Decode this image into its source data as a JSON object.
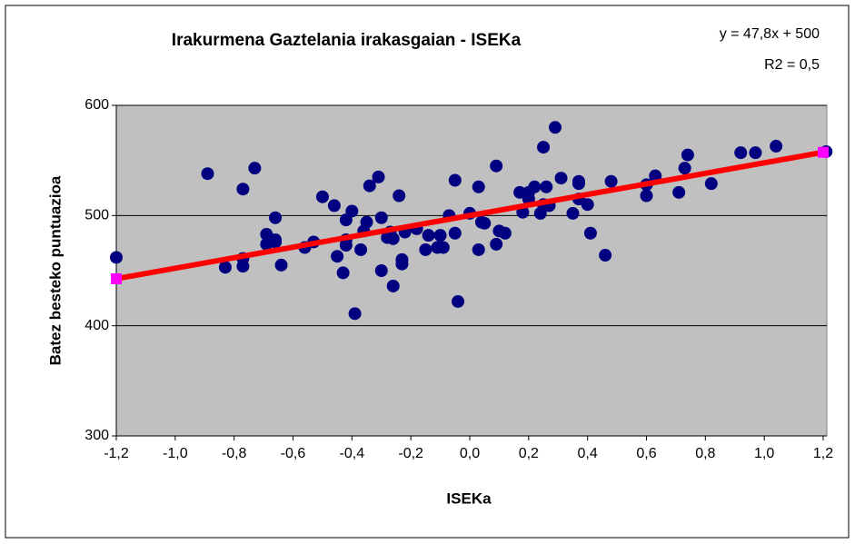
{
  "chart_data": {
    "type": "scatter",
    "title": "Irakurmena Gaztelania irakasgaian - ISEKa",
    "x_label": "ISEKa",
    "y_label": "Batez besteko puntuazioa",
    "annotations": [
      "y = 47,8x + 500",
      "R2 = 0,5"
    ],
    "plot_background": "#c0c0c0",
    "grid": true,
    "series": [
      {
        "color": "#000080",
        "x": [
          -1.2,
          -0.89,
          -0.83,
          -0.77,
          -0.77,
          -0.77,
          -0.73,
          -0.69,
          -0.69,
          -0.66,
          -0.66,
          -0.66,
          -0.64,
          -0.56,
          -0.53,
          -0.5,
          -0.46,
          -0.45,
          -0.43,
          -0.42,
          -0.42,
          -0.42,
          -0.4,
          -0.39,
          -0.37,
          -0.36,
          -0.35,
          -0.34,
          -0.31,
          -0.3,
          -0.3,
          -0.28,
          -0.27,
          -0.26,
          -0.26,
          -0.24,
          -0.23,
          -0.23,
          -0.22,
          -0.18,
          -0.15,
          -0.14,
          -0.11,
          -0.1,
          -0.09,
          -0.07,
          -0.05,
          -0.05,
          -0.04,
          0.0,
          0.03,
          0.03,
          0.04,
          0.05,
          0.09,
          0.09,
          0.1,
          0.12,
          0.17,
          0.18,
          0.2,
          0.2,
          0.22,
          0.24,
          0.25,
          0.25,
          0.26,
          0.27,
          0.29,
          0.31,
          0.35,
          0.37,
          0.37,
          0.37,
          0.4,
          0.41,
          0.46,
          0.48,
          0.6,
          0.6,
          0.63,
          0.71,
          0.73,
          0.74,
          0.82,
          0.92,
          0.97,
          1.04,
          1.21
        ],
        "values": [
          462,
          538,
          453,
          461,
          454,
          524,
          543,
          483,
          474,
          476,
          498,
          478,
          455,
          471,
          476,
          517,
          509,
          463,
          448,
          478,
          473,
          496,
          504,
          411,
          469,
          486,
          494,
          527,
          535,
          498,
          450,
          480,
          485,
          479,
          436,
          518,
          460,
          456,
          485,
          488,
          469,
          482,
          471,
          482,
          471,
          500,
          484,
          532,
          422,
          502,
          469,
          526,
          494,
          493,
          474,
          545,
          486,
          484,
          521,
          503,
          521,
          515,
          526,
          502,
          510,
          562,
          526,
          509,
          580,
          534,
          502,
          531,
          529,
          515,
          510,
          484,
          464,
          531,
          518,
          528,
          536,
          521,
          543,
          555,
          529,
          557,
          557,
          563,
          558
        ]
      }
    ],
    "trendline": {
      "color": "#ff0000",
      "endpoint_color": "#ff00ff",
      "x": [
        -1.2,
        1.2
      ],
      "y": [
        442.6,
        557.4
      ]
    },
    "xlim": [
      -1.2,
      1.2
    ],
    "xticks": [
      {
        "value": -1.2,
        "label": "-1,2"
      },
      {
        "value": -1.0,
        "label": "-1,0"
      },
      {
        "value": -0.8,
        "label": "-0,8"
      },
      {
        "value": -0.6,
        "label": "-0,6"
      },
      {
        "value": -0.4,
        "label": "-0,4"
      },
      {
        "value": -0.2,
        "label": "-0,2"
      },
      {
        "value": 0,
        "label": "0,0"
      },
      {
        "value": 0.2,
        "label": "0,2"
      },
      {
        "value": 0.4,
        "label": "0,4"
      },
      {
        "value": 0.6,
        "label": "0,6"
      },
      {
        "value": 0.8,
        "label": "0,8"
      },
      {
        "value": 1.0,
        "label": "1,0"
      },
      {
        "value": 1.2,
        "label": "1,2"
      }
    ],
    "ylim": [
      300,
      600
    ],
    "yticks": [
      300,
      400,
      500,
      600
    ]
  }
}
